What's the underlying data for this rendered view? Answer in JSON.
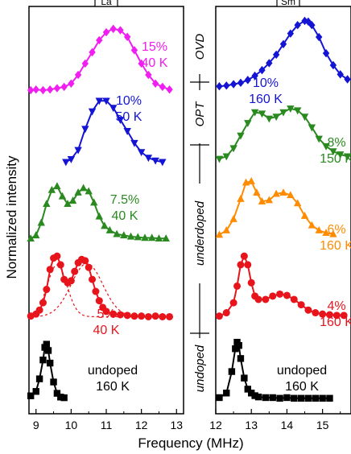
{
  "figure": {
    "ylabel": "Normalized intensity",
    "xlabel": "Frequency (MHz)",
    "doping_labels": [
      "OVD",
      "OPT",
      "underdoped",
      "undoped"
    ]
  },
  "chart_data": [
    {
      "type": "scatter",
      "panel_tag": "La",
      "xlim": [
        8.8,
        13.2
      ],
      "xticks": [
        9,
        10,
        11,
        12,
        13
      ],
      "traces": [
        {
          "label": "undoped\n160 K",
          "color": "#000000",
          "marker": "square",
          "offset": 0.0,
          "scale": 0.85,
          "x": [
            8.85,
            9.0,
            9.1,
            9.2,
            9.25,
            9.3,
            9.35,
            9.4,
            9.5,
            9.6,
            9.7,
            9.8
          ],
          "y": [
            0.08,
            0.15,
            0.35,
            0.65,
            0.85,
            0.9,
            0.8,
            0.6,
            0.3,
            0.12,
            0.06,
            0.05
          ]
        },
        {
          "label": "5%\n40 K",
          "color": "#e8141c",
          "marker": "circle",
          "offset": 1.1,
          "scale": 0.9,
          "x": [
            8.85,
            9.0,
            9.1,
            9.2,
            9.3,
            9.4,
            9.5,
            9.6,
            9.7,
            9.8,
            9.9,
            10.0,
            10.1,
            10.2,
            10.3,
            10.4,
            10.5,
            10.6,
            10.7,
            10.8,
            10.9,
            11.0,
            11.2,
            11.4,
            11.6,
            11.8,
            12.0,
            12.2,
            12.4,
            12.6,
            12.8
          ],
          "y": [
            0.05,
            0.08,
            0.14,
            0.25,
            0.45,
            0.75,
            0.92,
            0.95,
            0.82,
            0.6,
            0.55,
            0.58,
            0.72,
            0.85,
            0.9,
            0.88,
            0.78,
            0.6,
            0.42,
            0.28,
            0.18,
            0.12,
            0.08,
            0.07,
            0.06,
            0.05,
            0.05,
            0.04,
            0.05,
            0.04,
            0.04
          ]
        },
        {
          "label": "7.5%\n40 K",
          "color": "#2a8a1f",
          "marker": "triangle-up",
          "offset": 2.15,
          "scale": 0.85,
          "x": [
            8.85,
            9.0,
            9.15,
            9.3,
            9.45,
            9.6,
            9.75,
            9.9,
            10.05,
            10.2,
            10.35,
            10.5,
            10.65,
            10.8,
            10.95,
            11.1,
            11.3,
            11.5,
            11.7,
            11.9,
            12.1,
            12.3,
            12.5,
            12.7
          ],
          "y": [
            0.05,
            0.1,
            0.3,
            0.6,
            0.82,
            0.88,
            0.72,
            0.6,
            0.65,
            0.78,
            0.85,
            0.8,
            0.62,
            0.4,
            0.25,
            0.18,
            0.12,
            0.1,
            0.08,
            0.07,
            0.06,
            0.06,
            0.05,
            0.05
          ]
        },
        {
          "label": "10%\n50 K",
          "color": "#1414d4",
          "marker": "triangle-down",
          "offset": 3.15,
          "scale": 0.95,
          "x": [
            9.85,
            10.0,
            10.2,
            10.4,
            10.6,
            10.8,
            11.0,
            11.2,
            11.4,
            11.6,
            11.8,
            12.0,
            12.2,
            12.4,
            12.6
          ],
          "y": [
            0.08,
            0.12,
            0.25,
            0.55,
            0.8,
            0.95,
            0.95,
            0.85,
            0.68,
            0.52,
            0.35,
            0.22,
            0.14,
            0.1,
            0.08
          ]
        },
        {
          "label": "15%\n40 K",
          "color": "#f01ef0",
          "marker": "diamond",
          "offset": 4.15,
          "scale": 0.9,
          "x": [
            8.85,
            9.0,
            9.2,
            9.4,
            9.6,
            9.8,
            10.0,
            10.2,
            10.4,
            10.6,
            10.8,
            11.0,
            11.2,
            11.4,
            11.6,
            11.8,
            12.0,
            12.2,
            12.4,
            12.6,
            12.8
          ],
          "y": [
            0.05,
            0.06,
            0.05,
            0.06,
            0.08,
            0.1,
            0.15,
            0.28,
            0.45,
            0.62,
            0.8,
            0.92,
            0.97,
            0.95,
            0.85,
            0.65,
            0.45,
            0.28,
            0.15,
            0.1,
            0.06
          ]
        }
      ],
      "fit_components": {
        "color": "#e8141c",
        "style": "dotted",
        "peak1": {
          "center": 9.6,
          "width": 0.28,
          "amp": 0.78
        },
        "peak2": {
          "center": 10.45,
          "width": 0.45,
          "amp": 0.8
        }
      }
    },
    {
      "type": "scatter",
      "panel_tag": "Sm",
      "xlim": [
        12.0,
        15.8
      ],
      "xticks": [
        12,
        13,
        14,
        15
      ],
      "traces": [
        {
          "label": "undoped\n160 K",
          "color": "#000000",
          "marker": "square",
          "offset": 0.0,
          "scale": 0.88,
          "x": [
            12.1,
            12.3,
            12.45,
            12.55,
            12.6,
            12.65,
            12.7,
            12.8,
            12.9,
            13.0,
            13.1,
            13.2,
            13.4,
            13.6,
            13.8,
            14.0,
            14.2,
            14.4,
            14.6,
            14.8,
            15.0,
            15.2
          ],
          "y": [
            0.05,
            0.12,
            0.45,
            0.8,
            0.9,
            0.85,
            0.65,
            0.35,
            0.18,
            0.12,
            0.08,
            0.06,
            0.05,
            0.05,
            0.04,
            0.05,
            0.04,
            0.04,
            0.04,
            0.04,
            0.04,
            0.04
          ]
        },
        {
          "label": "4%\n160 K",
          "color": "#e8141c",
          "marker": "circle",
          "offset": 1.1,
          "scale": 0.9,
          "x": [
            12.1,
            12.3,
            12.5,
            12.6,
            12.7,
            12.8,
            12.9,
            13.0,
            13.1,
            13.2,
            13.4,
            13.6,
            13.8,
            14.0,
            14.2,
            14.4,
            14.6,
            14.8,
            15.0,
            15.2,
            15.4,
            15.6
          ],
          "y": [
            0.05,
            0.1,
            0.25,
            0.5,
            0.82,
            0.95,
            0.82,
            0.55,
            0.35,
            0.3,
            0.3,
            0.35,
            0.38,
            0.36,
            0.3,
            0.22,
            0.14,
            0.1,
            0.08,
            0.07,
            0.06,
            0.06
          ]
        },
        {
          "label": "6%\n160 K",
          "color": "#ff8c00",
          "marker": "triangle-up",
          "offset": 2.2,
          "scale": 0.85,
          "x": [
            12.1,
            12.3,
            12.5,
            12.7,
            12.85,
            13.0,
            13.15,
            13.3,
            13.5,
            13.7,
            13.9,
            14.1,
            14.3,
            14.5,
            14.7,
            14.9,
            15.1,
            15.3
          ],
          "y": [
            0.05,
            0.12,
            0.3,
            0.62,
            0.88,
            0.9,
            0.72,
            0.58,
            0.6,
            0.7,
            0.72,
            0.68,
            0.55,
            0.35,
            0.2,
            0.12,
            0.08,
            0.06
          ]
        },
        {
          "label": "8%\n150 K",
          "color": "#2a8a1f",
          "marker": "triangle-down",
          "offset": 3.2,
          "scale": 0.85,
          "x": [
            12.1,
            12.3,
            12.5,
            12.7,
            12.9,
            13.1,
            13.3,
            13.5,
            13.7,
            13.9,
            14.1,
            14.3,
            14.5,
            14.7,
            14.9,
            15.1,
            15.3,
            15.5,
            15.7
          ],
          "y": [
            0.08,
            0.12,
            0.25,
            0.45,
            0.65,
            0.82,
            0.8,
            0.72,
            0.75,
            0.82,
            0.88,
            0.85,
            0.75,
            0.58,
            0.4,
            0.28,
            0.2,
            0.15,
            0.12
          ]
        },
        {
          "label": "10%\n160 K",
          "color": "#1414d4",
          "marker": "diamond",
          "offset": 4.2,
          "scale": 0.95,
          "x": [
            12.1,
            12.3,
            12.5,
            12.7,
            12.9,
            13.1,
            13.3,
            13.5,
            13.7,
            13.9,
            14.1,
            14.3,
            14.5,
            14.6,
            14.7,
            14.9,
            15.1,
            15.3,
            15.5,
            15.7
          ],
          "y": [
            0.05,
            0.06,
            0.08,
            0.1,
            0.14,
            0.2,
            0.28,
            0.38,
            0.5,
            0.65,
            0.8,
            0.92,
            0.98,
            0.97,
            0.92,
            0.75,
            0.52,
            0.35,
            0.22,
            0.15
          ]
        }
      ]
    }
  ]
}
